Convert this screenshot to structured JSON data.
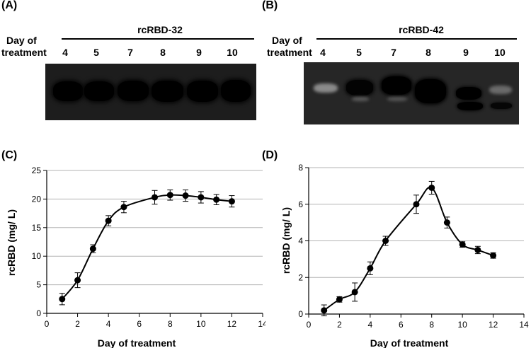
{
  "panels": {
    "A": "(A)",
    "B": "(B)",
    "C": "(C)",
    "D": "(D)"
  },
  "blots": [
    {
      "title": "rcRBD-32",
      "row_label_line1": "Day of",
      "row_label_line2": "treatment",
      "lanes": [
        "4",
        "5",
        "7",
        "8",
        "9",
        "10"
      ]
    },
    {
      "title": "rcRBD-42",
      "row_label_line1": "Day of",
      "row_label_line2": "treatment",
      "lanes": [
        "4",
        "5",
        "7",
        "8",
        "9",
        "10"
      ]
    }
  ],
  "chart_data": [
    {
      "type": "line",
      "panel": "(C)",
      "xlabel": "Day of treatment",
      "ylabel": "rcRBD (mg/ L)",
      "xlim": [
        0,
        14
      ],
      "ylim": [
        0,
        25
      ],
      "xticks": [
        0,
        2,
        4,
        6,
        8,
        10,
        12,
        14
      ],
      "yticks": [
        0,
        5,
        10,
        15,
        20,
        25
      ],
      "grid": "horizontal",
      "x": [
        1,
        2,
        3,
        4,
        5,
        7,
        8,
        9,
        10,
        11,
        12
      ],
      "y": [
        2.5,
        5.8,
        11.3,
        16.2,
        18.6,
        20.3,
        20.7,
        20.6,
        20.3,
        19.9,
        19.6
      ],
      "error": [
        1.0,
        1.3,
        0.7,
        0.9,
        1.0,
        1.2,
        0.9,
        1.0,
        1.0,
        0.9,
        1.0
      ]
    },
    {
      "type": "line",
      "panel": "(D)",
      "xlabel": "Day of treatment",
      "ylabel": "rcRBD (mg/ L)",
      "xlim": [
        0,
        14
      ],
      "ylim": [
        0,
        8
      ],
      "xticks": [
        0,
        2,
        4,
        6,
        8,
        10,
        12,
        14
      ],
      "yticks": [
        0,
        2,
        4,
        6,
        8
      ],
      "grid": "horizontal",
      "x": [
        1,
        2,
        3,
        4,
        5,
        7,
        8,
        9,
        10,
        11,
        12
      ],
      "y": [
        0.2,
        0.8,
        1.2,
        2.5,
        4.0,
        6.0,
        6.9,
        5.0,
        3.8,
        3.5,
        3.2
      ],
      "error": [
        0.3,
        0.15,
        0.5,
        0.35,
        0.25,
        0.5,
        0.35,
        0.3,
        0.15,
        0.2,
        0.15
      ]
    }
  ]
}
